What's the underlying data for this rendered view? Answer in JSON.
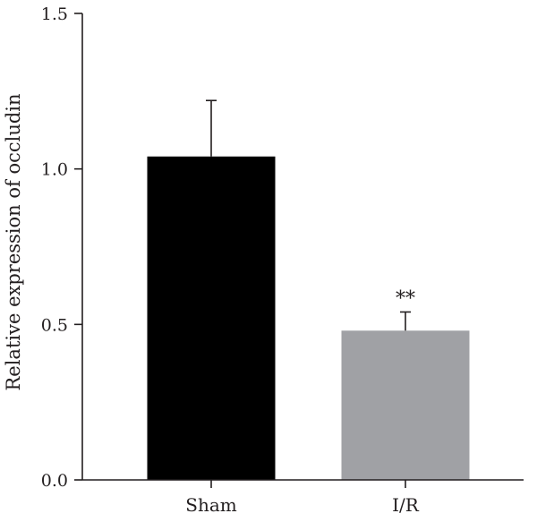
{
  "chart_data": {
    "type": "bar",
    "title": "",
    "xlabel": "",
    "ylabel": "Relative expression of occludin",
    "ylim": [
      0,
      1.5
    ],
    "yticks": [
      0.0,
      0.5,
      1.0,
      1.5
    ],
    "ytick_labels": [
      "0.0",
      "0.5",
      "1.0",
      "1.5"
    ],
    "grid": false,
    "categories": [
      "Sham",
      "I/R"
    ],
    "values": [
      1.04,
      0.48
    ],
    "error_upper": [
      0.18,
      0.06
    ],
    "colors": [
      "#000000",
      "#a0a1a5"
    ],
    "annotations": [
      "",
      "**"
    ]
  }
}
